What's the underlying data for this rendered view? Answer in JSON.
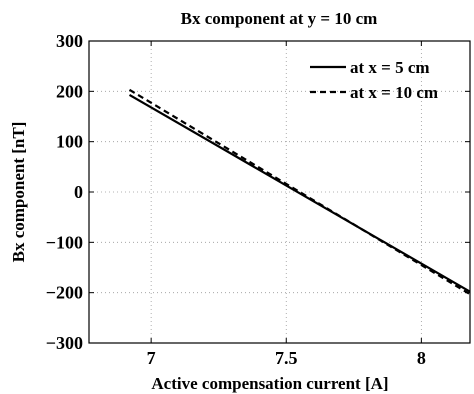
{
  "chart_data": {
    "type": "line",
    "title": "Bx component at y = 10 cm",
    "xlabel": "Active compensation current [A]",
    "ylabel": "Bx component [nT]",
    "xlim": [
      6.77,
      8.18
    ],
    "ylim": [
      -300,
      300
    ],
    "xticks": [
      7,
      7.5,
      8
    ],
    "xtick_labels": [
      "7",
      "7.5",
      "8"
    ],
    "yticks": [
      300,
      200,
      100,
      0,
      -100,
      -200,
      -300
    ],
    "ytick_labels": [
      "300",
      "200",
      "100",
      "0",
      "−100",
      "−200",
      "−300"
    ],
    "grid": true,
    "legend_position": "top-right",
    "series": [
      {
        "name": "at x = 5 cm",
        "style": "solid",
        "color": "#000000",
        "x": [
          6.92,
          8.18
        ],
        "y": [
          193,
          -198
        ]
      },
      {
        "name": "at x = 10 cm",
        "style": "dashed",
        "color": "#000000",
        "x": [
          6.92,
          8.18
        ],
        "y": [
          203,
          -203
        ]
      }
    ]
  }
}
